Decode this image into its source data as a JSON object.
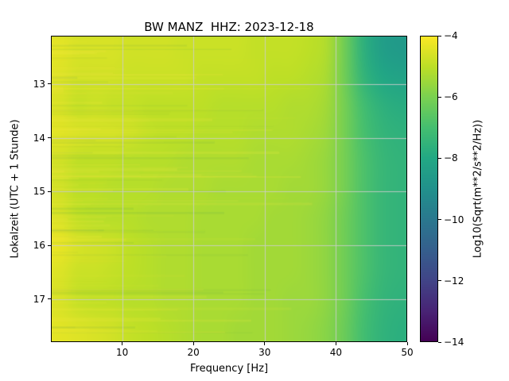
{
  "figure": {
    "background": "#ffffff",
    "spine_color": "#000000"
  },
  "chart_data": {
    "type": "heatmap",
    "title": "BW MANZ  HHZ: 2023-12-18",
    "xlabel": "Frequency [Hz]",
    "ylabel": "Lokalzeit (UTC + 1 Stunde)",
    "xlim": [
      0,
      50
    ],
    "ylim_hours": [
      12.1,
      17.8
    ],
    "xticks": [
      10,
      20,
      30,
      40,
      50
    ],
    "yticks": [
      13,
      14,
      15,
      16,
      17
    ],
    "grid": true,
    "grid_color": "#cccccc",
    "colormap": "viridis",
    "colorbar": {
      "label": "Log10(Sqrt(m**2/s**2/Hz))",
      "ticks": [
        -4,
        -6,
        -8,
        -10,
        -12,
        -14
      ],
      "vmin": -14,
      "vmax": -4
    },
    "freq_bin_centers_hz": [
      1.25,
      3.75,
      6.25,
      8.75,
      11.25,
      13.75,
      16.25,
      18.75,
      21.25,
      23.75,
      26.25,
      28.75,
      31.25,
      33.75,
      36.25,
      38.75,
      41.25,
      43.75,
      46.25,
      48.75
    ],
    "time_row_centers_hours": [
      12.36,
      12.88,
      13.4,
      13.92,
      14.44,
      14.95,
      15.47,
      15.99,
      16.51,
      17.03,
      17.54
    ],
    "values": [
      [
        -4.4,
        -4.6,
        -4.6,
        -4.6,
        -4.7,
        -4.7,
        -4.7,
        -4.8,
        -4.8,
        -4.8,
        -4.8,
        -4.9,
        -4.9,
        -4.9,
        -5.0,
        -5.2,
        -6.2,
        -7.6,
        -8.4,
        -8.6
      ],
      [
        -4.5,
        -4.7,
        -4.7,
        -4.7,
        -4.8,
        -4.8,
        -4.8,
        -4.8,
        -4.9,
        -4.9,
        -4.9,
        -4.9,
        -5.0,
        -5.0,
        -5.1,
        -5.3,
        -6.2,
        -7.4,
        -8.0,
        -8.2
      ],
      [
        -4.6,
        -4.9,
        -4.8,
        -4.9,
        -4.9,
        -5.0,
        -5.0,
        -5.0,
        -5.0,
        -5.1,
        -5.1,
        -5.1,
        -5.1,
        -5.2,
        -5.2,
        -5.4,
        -6.1,
        -7.0,
        -7.6,
        -7.8
      ],
      [
        -4.4,
        -4.5,
        -4.6,
        -4.6,
        -4.7,
        -4.9,
        -5.0,
        -5.0,
        -5.1,
        -5.1,
        -5.1,
        -5.2,
        -5.2,
        -5.2,
        -5.3,
        -5.5,
        -6.1,
        -6.9,
        -7.4,
        -7.6
      ],
      [
        -4.7,
        -5.0,
        -5.0,
        -5.0,
        -5.1,
        -5.1,
        -5.1,
        -5.2,
        -5.2,
        -5.2,
        -5.2,
        -5.3,
        -5.3,
        -5.3,
        -5.4,
        -5.6,
        -6.1,
        -6.8,
        -7.3,
        -7.5
      ],
      [
        -4.7,
        -5.0,
        -5.0,
        -5.1,
        -5.1,
        -5.1,
        -5.2,
        -5.2,
        -5.2,
        -5.3,
        -5.3,
        -5.3,
        -5.3,
        -5.4,
        -5.4,
        -5.6,
        -6.1,
        -6.8,
        -7.3,
        -7.5
      ],
      [
        -4.6,
        -5.0,
        -5.1,
        -5.1,
        -5.1,
        -5.2,
        -5.2,
        -5.2,
        -5.3,
        -5.3,
        -5.3,
        -5.3,
        -5.4,
        -5.4,
        -5.5,
        -5.7,
        -6.2,
        -6.8,
        -7.3,
        -7.5
      ],
      [
        -4.3,
        -4.6,
        -4.7,
        -4.8,
        -5.0,
        -5.1,
        -5.2,
        -5.2,
        -5.3,
        -5.3,
        -5.3,
        -5.4,
        -5.4,
        -5.4,
        -5.5,
        -5.7,
        -6.2,
        -6.8,
        -7.3,
        -7.5
      ],
      [
        -4.5,
        -4.8,
        -4.8,
        -4.9,
        -5.0,
        -5.1,
        -5.2,
        -5.2,
        -5.3,
        -5.3,
        -5.3,
        -5.4,
        -5.4,
        -5.4,
        -5.5,
        -5.7,
        -6.2,
        -6.8,
        -7.3,
        -7.5
      ],
      [
        -4.6,
        -4.9,
        -5.0,
        -5.0,
        -5.1,
        -5.1,
        -5.2,
        -5.2,
        -5.3,
        -5.3,
        -5.3,
        -5.4,
        -5.4,
        -5.5,
        -5.5,
        -5.7,
        -6.2,
        -6.9,
        -7.4,
        -7.6
      ],
      [
        -4.4,
        -4.5,
        -4.6,
        -4.7,
        -4.9,
        -5.0,
        -5.1,
        -5.2,
        -5.3,
        -5.3,
        -5.4,
        -5.4,
        -5.4,
        -5.5,
        -5.6,
        -5.8,
        -6.3,
        -7.0,
        -7.5,
        -7.7
      ]
    ]
  }
}
